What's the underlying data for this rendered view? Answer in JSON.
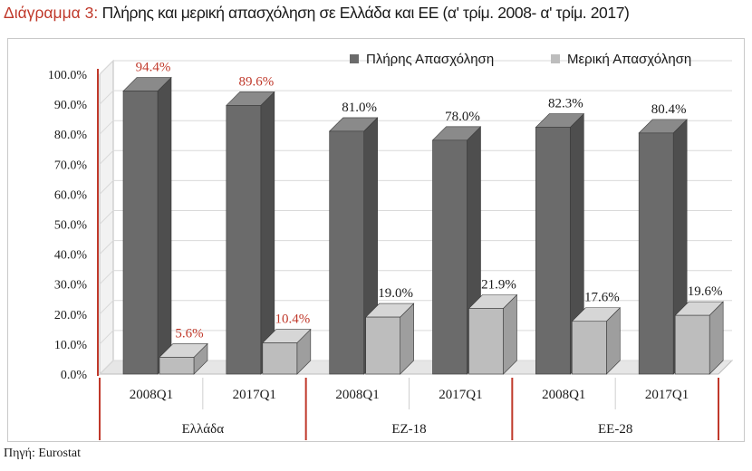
{
  "title": {
    "prefix": "Διάγραμμα 3:",
    "text": "Πλήρης και μερική απασχόληση σε Ελλάδα και ΕΕ (α' τρίμ. 2008- α' τρίμ. 2017)"
  },
  "source": "Πηγή: Eurostat",
  "colors": {
    "full_front": "#6b6b6b",
    "full_side": "#4e4e4e",
    "full_top": "#8a8a8a",
    "part_front": "#bdbdbd",
    "part_side": "#9e9e9e",
    "part_top": "#d6d6d6",
    "highlight": "#c0392b",
    "text": "#1a1a1a",
    "grid": "#d9d9d9",
    "floor": "#e6e6e6"
  },
  "chart_data": {
    "type": "bar",
    "title": "Πλήρης και μερική απασχόληση σε Ελλάδα και ΕΕ (α' τρίμ. 2008- α' τρίμ. 2017)",
    "xlabel": "",
    "ylabel": "",
    "ylim": [
      0,
      100
    ],
    "yticks": [
      "0.0%",
      "10.0%",
      "20.0%",
      "30.0%",
      "40.0%",
      "50.0%",
      "60.0%",
      "70.0%",
      "80.0%",
      "90.0%",
      "100.0%"
    ],
    "categories": [
      "2008Q1",
      "2017Q1",
      "2008Q1",
      "2017Q1",
      "2008Q1",
      "2017Q1"
    ],
    "groups": [
      {
        "name": "Ελλάδα",
        "categories": [
          "2008Q1",
          "2017Q1"
        ]
      },
      {
        "name": "ΕΖ-18",
        "categories": [
          "2008Q1",
          "2017Q1"
        ]
      },
      {
        "name": "ΕΕ-28",
        "categories": [
          "2008Q1",
          "2017Q1"
        ]
      }
    ],
    "series": [
      {
        "name": "Πλήρης Απασχόληση",
        "values": [
          94.4,
          89.6,
          81.0,
          78.0,
          82.3,
          80.4
        ],
        "labels": [
          "94.4%",
          "89.6%",
          "81.0%",
          "78.0%",
          "82.3%",
          "80.4%"
        ]
      },
      {
        "name": "Μερική Απασχόληση",
        "values": [
          5.6,
          10.4,
          19.0,
          21.9,
          17.6,
          19.6
        ],
        "labels": [
          "5.6%",
          "10.4%",
          "19.0%",
          "21.9%",
          "17.6%",
          "19.6%"
        ]
      }
    ],
    "highlighted_categories": [
      0,
      1
    ],
    "legend": "top-right"
  }
}
